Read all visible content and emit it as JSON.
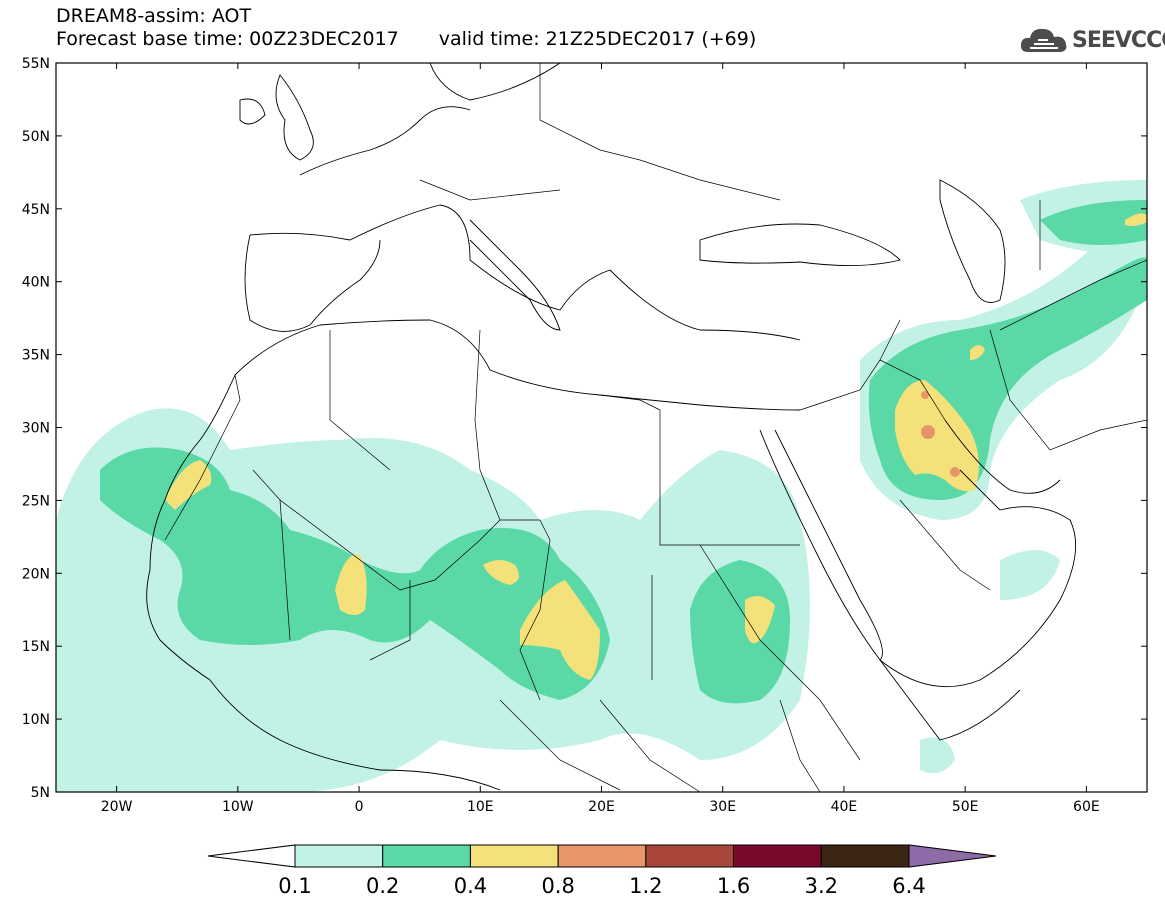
{
  "header": {
    "title": "DREAM8-assim: AOT",
    "base_time": "Forecast base time: 00Z23DEC2017",
    "valid_time": "valid time: 21Z25DEC2017 (+69)"
  },
  "logo": {
    "text": "SEEVCCC",
    "icon": "cloud-icon"
  },
  "map": {
    "lon_range": [
      -25,
      65
    ],
    "lat_range": [
      5,
      55
    ],
    "lat_ticks": [
      "5N",
      "10N",
      "15N",
      "20N",
      "25N",
      "30N",
      "35N",
      "40N",
      "45N",
      "50N",
      "55N"
    ],
    "lon_ticks": [
      "20W",
      "10W",
      "0",
      "10E",
      "20E",
      "30E",
      "40E",
      "50E",
      "60E"
    ]
  },
  "colorbar": {
    "levels": [
      "0.1",
      "0.2",
      "0.4",
      "0.8",
      "1.2",
      "1.6",
      "3.2",
      "6.4"
    ],
    "colors": [
      "#ffffff",
      "#c2f2e6",
      "#5ad8a6",
      "#f4e17a",
      "#e8956a",
      "#a9483a",
      "#7a0a2a",
      "#3b2614",
      "#8e6aa8"
    ]
  }
}
